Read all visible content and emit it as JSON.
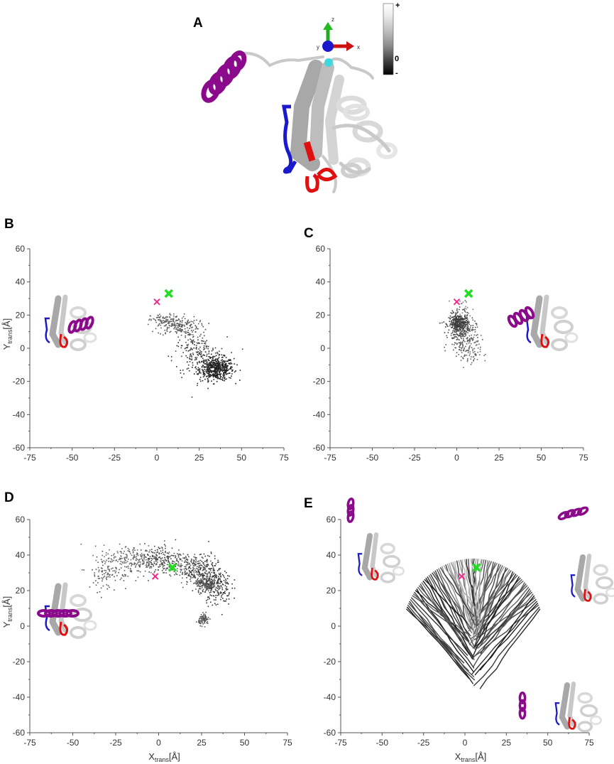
{
  "figure": {
    "panels": [
      {
        "letter": "A"
      },
      {
        "letter": "B"
      },
      {
        "letter": "C"
      },
      {
        "letter": "D"
      },
      {
        "letter": "E"
      }
    ],
    "colorbar": {
      "top": "+",
      "mid": "0",
      "bottom": "-"
    },
    "triad": {
      "x": "x",
      "y": "y",
      "z": "z"
    },
    "colors": {
      "helix": "#8b0a8b",
      "loop_blue": "#1a1acc",
      "loop_red": "#e01010",
      "green_cross": "#22dd22",
      "pink_cross": "#ee2d8c",
      "protein": "#d8d8d8"
    }
  },
  "chart_data": [
    {
      "panel": "B",
      "type": "scatter",
      "xlabel_main": "",
      "xlabel_sub": "",
      "ylabel_main": "Y",
      "ylabel_sub": "trans",
      "ylabel_unit": "[Å]",
      "xlim": [
        -75,
        75
      ],
      "ylim": [
        -60,
        60
      ],
      "xticks": [
        "-75",
        "-50",
        "-25",
        "0",
        "25",
        "50",
        "75"
      ],
      "yticks": [
        "60",
        "40",
        "20",
        "0",
        "-20",
        "-40",
        "-60"
      ],
      "markers": {
        "pink_x": [
          0,
          28
        ],
        "green_x": [
          7,
          33
        ]
      },
      "clusters": [
        {
          "cx": 35,
          "cy": -12,
          "sx": 5,
          "sy": 3.5,
          "n": 500,
          "shade": "#1e1e1e"
        },
        {
          "cx": 25,
          "cy": -5,
          "sx": 8,
          "sy": 6,
          "n": 160,
          "shade": "#333333"
        },
        {
          "cx": 12,
          "cy": 14,
          "sx": 6,
          "sy": 3,
          "n": 160,
          "shade": "#555555"
        },
        {
          "cx": 4,
          "cy": 17,
          "sx": 4,
          "sy": 2,
          "n": 80,
          "shade": "#666666"
        },
        {
          "cx": 22,
          "cy": 5,
          "sx": 5,
          "sy": 5,
          "n": 60,
          "shade": "#4a4a4a"
        }
      ]
    },
    {
      "panel": "C",
      "type": "scatter",
      "xlabel_main": "",
      "xlabel_sub": "",
      "ylabel_main": "",
      "ylabel_sub": "",
      "ylabel_unit": "",
      "xlim": [
        -75,
        75
      ],
      "ylim": [
        -60,
        60
      ],
      "xticks": [
        "-75",
        "-50",
        "-25",
        "0",
        "25",
        "50",
        "75"
      ],
      "yticks": [
        "60",
        "40",
        "20",
        "0",
        "-20",
        "-40",
        "-60"
      ],
      "markers": {
        "pink_x": [
          0,
          28
        ],
        "green_x": [
          7,
          33
        ]
      },
      "clusters": [
        {
          "cx": 1,
          "cy": 15,
          "sx": 3,
          "sy": 3,
          "n": 360,
          "shade": "#3a3a3a"
        },
        {
          "cx": 3,
          "cy": 8,
          "sx": 4,
          "sy": 6,
          "n": 180,
          "shade": "#555555"
        },
        {
          "cx": 8,
          "cy": -2,
          "sx": 3,
          "sy": 5,
          "n": 70,
          "shade": "#666666"
        },
        {
          "cx": 3,
          "cy": 24,
          "sx": 3,
          "sy": 3,
          "n": 25,
          "shade": "#777777"
        }
      ]
    },
    {
      "panel": "D",
      "type": "scatter",
      "xlabel_main": "X",
      "xlabel_sub": "trans",
      "xlabel_unit": "[Å]",
      "ylabel_main": "Y",
      "ylabel_sub": "trans",
      "ylabel_unit": "[Å]",
      "xlim": [
        -75,
        75
      ],
      "ylim": [
        -60,
        60
      ],
      "xticks": [
        "-75",
        "-50",
        "-25",
        "0",
        "25",
        "50",
        "75"
      ],
      "yticks": [
        "60",
        "40",
        "20",
        "0",
        "-20",
        "-40",
        "-60"
      ],
      "markers": {
        "pink_x": [
          -2,
          28
        ],
        "green_x": [
          8,
          33
        ]
      },
      "clusters": [
        {
          "cx": -15,
          "cy": 38,
          "sx": 9,
          "sy": 4,
          "n": 220,
          "shade": "#666666"
        },
        {
          "cx": -30,
          "cy": 30,
          "sx": 6,
          "sy": 5,
          "n": 90,
          "shade": "#555555"
        },
        {
          "cx": 0,
          "cy": 38,
          "sx": 6,
          "sy": 4,
          "n": 160,
          "shade": "#444444"
        },
        {
          "cx": 15,
          "cy": 34,
          "sx": 6,
          "sy": 4,
          "n": 180,
          "shade": "#5a5a5a"
        },
        {
          "cx": 27,
          "cy": 30,
          "sx": 5,
          "sy": 5,
          "n": 240,
          "shade": "#383838"
        },
        {
          "cx": 34,
          "cy": 22,
          "sx": 4,
          "sy": 5,
          "n": 140,
          "shade": "#2e2e2e"
        },
        {
          "cx": 27,
          "cy": 23,
          "sx": 3,
          "sy": 2,
          "n": 110,
          "shade": "#555555"
        },
        {
          "cx": 26,
          "cy": 4,
          "sx": 1.5,
          "sy": 1.5,
          "n": 90,
          "shade": "#555555"
        }
      ]
    },
    {
      "panel": "E",
      "type": "scatter",
      "xlabel_main": "X",
      "xlabel_sub": "trans",
      "xlabel_unit": "[Å]",
      "ylabel_main": "",
      "ylabel_sub": "",
      "ylabel_unit": "",
      "xlim": [
        -75,
        75
      ],
      "ylim": [
        -60,
        60
      ],
      "xticks": [
        "-75",
        "-50",
        "-25",
        "0",
        "25",
        "50",
        "75"
      ],
      "yticks": [
        "60",
        "40",
        "20",
        "0",
        "-20",
        "-40",
        "-60"
      ],
      "markers": {
        "pink_x": [
          -2,
          28
        ],
        "green_x": [
          7,
          33
        ]
      },
      "trajectories": {
        "center": [
          5,
          -5
        ],
        "radius": 43,
        "angle_min": 20,
        "angle_max": 160,
        "count": 90
      }
    }
  ]
}
